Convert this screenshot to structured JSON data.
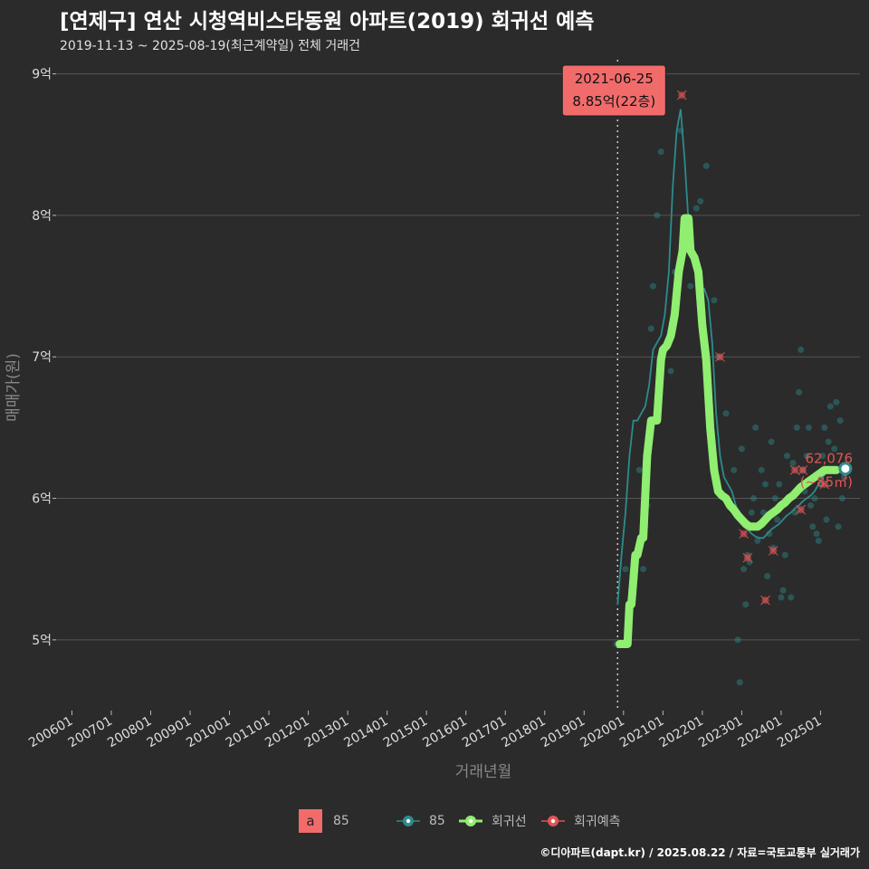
{
  "title": "[연제구] 연산 시청역비스타동원 아파트(2019) 회귀선 예측",
  "subtitle": "2019-11-13 ~ 2025-08-19(최근계약일) 전체 거래건",
  "footer": "©디아파트(dapt.kr) / 2025.08.22 / 자료=국토교통부 실거래가",
  "colors": {
    "background": "#2b2b2b",
    "grid": "#555555",
    "series85": "#2e8b8b",
    "regression": "#90ee70",
    "prediction": "#e05555",
    "callout_bg": "#f26b6b"
  },
  "chart_data": {
    "type": "line",
    "title": "[연제구] 연산 시청역비스타동원 아파트(2019) 회귀선 예측",
    "xlabel": "거래년월",
    "ylabel": "매매가(원)",
    "ylim": [
      4.5,
      9.1
    ],
    "y_unit": "억",
    "yticks": [
      5,
      6,
      7,
      8,
      9
    ],
    "ytick_labels": [
      "5억",
      "6억",
      "7억",
      "8억",
      "9억"
    ],
    "xlim": [
      2005.6,
      2026.0
    ],
    "xticks": [
      2006,
      2007,
      2008,
      2009,
      2010,
      2011,
      2012,
      2013,
      2014,
      2015,
      2016,
      2017,
      2018,
      2019,
      2020,
      2021,
      2022,
      2023,
      2024,
      2025
    ],
    "xtick_labels": [
      "200601",
      "200701",
      "200801",
      "200901",
      "201001",
      "201101",
      "201201",
      "201301",
      "201401",
      "201501",
      "201601",
      "201701",
      "201801",
      "201901",
      "202001",
      "202101",
      "202201",
      "202301",
      "202401",
      "202501"
    ],
    "vline_x": 2019.85,
    "annotation": {
      "x": 2021.48,
      "y": 8.85,
      "date": "2021-06-25",
      "value_label": "8.85억(22층)"
    },
    "end_label": {
      "x": 2025.63,
      "y": 6.21,
      "value": "62,076",
      "area": "(~85㎡)"
    },
    "legend": [
      {
        "key": "a",
        "label": "85",
        "type": "box"
      },
      {
        "label": "85",
        "type": "line-point"
      },
      {
        "label": "회귀선",
        "type": "line-point"
      },
      {
        "label": "회귀예측",
        "type": "line-point"
      }
    ],
    "series": [
      {
        "name": "85",
        "x": [
          2019.85,
          2019.95,
          2020.05,
          2020.15,
          2020.25,
          2020.35,
          2020.45,
          2020.55,
          2020.65,
          2020.75,
          2020.85,
          2020.95,
          2021.05,
          2021.15,
          2021.25,
          2021.35,
          2021.45,
          2021.55,
          2021.65,
          2021.75,
          2021.85,
          2021.95,
          2022.05,
          2022.15,
          2022.25,
          2022.35,
          2022.45,
          2022.55,
          2022.65,
          2022.75,
          2022.85,
          2022.95,
          2023.05,
          2023.15,
          2023.25,
          2023.35,
          2023.45,
          2023.55,
          2023.65,
          2023.75,
          2023.85,
          2023.95,
          2024.05,
          2024.15,
          2024.25,
          2024.35,
          2024.45,
          2024.55,
          2024.65,
          2024.75,
          2024.85,
          2024.95,
          2025.05,
          2025.15,
          2025.25,
          2025.35,
          2025.45,
          2025.55,
          2025.63
        ],
        "values": [
          5.25,
          5.6,
          5.9,
          6.3,
          6.55,
          6.55,
          6.6,
          6.65,
          6.8,
          7.05,
          7.1,
          7.15,
          7.3,
          7.6,
          8.2,
          8.6,
          8.75,
          8.4,
          7.95,
          7.75,
          7.6,
          7.48,
          7.48,
          7.4,
          7.1,
          6.6,
          6.3,
          6.15,
          6.1,
          6.05,
          5.95,
          5.85,
          5.8,
          5.78,
          5.75,
          5.73,
          5.72,
          5.72,
          5.75,
          5.78,
          5.8,
          5.82,
          5.85,
          5.88,
          5.9,
          5.93,
          5.95,
          5.98,
          6.0,
          6.02,
          6.05,
          6.1,
          6.15,
          6.18,
          6.2,
          6.21,
          6.21,
          6.21,
          6.21
        ]
      },
      {
        "name": "회귀선",
        "x": [
          2019.9,
          2020.1,
          2020.15,
          2020.2,
          2020.3,
          2020.35,
          2020.45,
          2020.5,
          2020.6,
          2020.7,
          2020.75,
          2020.85,
          2020.95,
          2021.0,
          2021.1,
          2021.2,
          2021.3,
          2021.4,
          2021.5,
          2021.55,
          2021.65,
          2021.7,
          2021.8,
          2021.9,
          2022.0,
          2022.1,
          2022.2,
          2022.3,
          2022.4,
          2022.5,
          2022.6,
          2022.7,
          2022.8,
          2022.9,
          2023.0,
          2023.1,
          2023.2,
          2023.3,
          2023.4,
          2023.5,
          2023.6,
          2023.7,
          2023.8,
          2023.9,
          2024.0,
          2024.1,
          2024.2,
          2024.3,
          2024.4,
          2024.5,
          2024.6,
          2024.7,
          2024.8,
          2024.9,
          2025.0,
          2025.1,
          2025.2,
          2025.3,
          2025.4
        ],
        "values": [
          4.97,
          4.97,
          5.25,
          5.25,
          5.6,
          5.6,
          5.72,
          5.72,
          6.3,
          6.55,
          6.55,
          6.55,
          6.98,
          7.05,
          7.08,
          7.15,
          7.3,
          7.6,
          7.75,
          7.98,
          7.98,
          7.75,
          7.7,
          7.6,
          7.22,
          6.98,
          6.5,
          6.2,
          6.05,
          6.02,
          6.0,
          5.95,
          5.92,
          5.88,
          5.85,
          5.82,
          5.8,
          5.8,
          5.8,
          5.82,
          5.85,
          5.88,
          5.9,
          5.92,
          5.95,
          5.97,
          6.0,
          6.02,
          6.05,
          6.08,
          6.1,
          6.12,
          6.14,
          6.16,
          6.18,
          6.2,
          6.2,
          6.2,
          6.2
        ]
      }
    ],
    "scatter_points": [
      {
        "x": 2019.82,
        "y": 4.97
      },
      {
        "x": 2020.05,
        "y": 5.5
      },
      {
        "x": 2020.4,
        "y": 6.2
      },
      {
        "x": 2020.5,
        "y": 5.5
      },
      {
        "x": 2020.55,
        "y": 5.8
      },
      {
        "x": 2020.6,
        "y": 5.95
      },
      {
        "x": 2020.7,
        "y": 7.2
      },
      {
        "x": 2020.75,
        "y": 7.5
      },
      {
        "x": 2020.85,
        "y": 8.0
      },
      {
        "x": 2020.95,
        "y": 8.45
      },
      {
        "x": 2021.1,
        "y": 7.1
      },
      {
        "x": 2021.2,
        "y": 6.9
      },
      {
        "x": 2021.3,
        "y": 7.6
      },
      {
        "x": 2021.45,
        "y": 8.6
      },
      {
        "x": 2021.6,
        "y": 7.8
      },
      {
        "x": 2021.7,
        "y": 7.5
      },
      {
        "x": 2021.85,
        "y": 8.05
      },
      {
        "x": 2021.95,
        "y": 8.1
      },
      {
        "x": 2022.1,
        "y": 8.35
      },
      {
        "x": 2022.3,
        "y": 7.4
      },
      {
        "x": 2022.4,
        "y": 7.0
      },
      {
        "x": 2022.6,
        "y": 6.6
      },
      {
        "x": 2022.8,
        "y": 6.2
      },
      {
        "x": 2022.9,
        "y": 5.0
      },
      {
        "x": 2022.95,
        "y": 4.7
      },
      {
        "x": 2023.0,
        "y": 6.35
      },
      {
        "x": 2023.05,
        "y": 5.5
      },
      {
        "x": 2023.1,
        "y": 5.25
      },
      {
        "x": 2023.15,
        "y": 5.6
      },
      {
        "x": 2023.2,
        "y": 5.55
      },
      {
        "x": 2023.25,
        "y": 5.9
      },
      {
        "x": 2023.3,
        "y": 6.0
      },
      {
        "x": 2023.35,
        "y": 6.5
      },
      {
        "x": 2023.4,
        "y": 5.7
      },
      {
        "x": 2023.45,
        "y": 5.8
      },
      {
        "x": 2023.5,
        "y": 6.2
      },
      {
        "x": 2023.55,
        "y": 5.9
      },
      {
        "x": 2023.6,
        "y": 6.1
      },
      {
        "x": 2023.65,
        "y": 5.45
      },
      {
        "x": 2023.7,
        "y": 5.75
      },
      {
        "x": 2023.75,
        "y": 6.4
      },
      {
        "x": 2023.8,
        "y": 5.65
      },
      {
        "x": 2023.85,
        "y": 6.0
      },
      {
        "x": 2023.9,
        "y": 5.85
      },
      {
        "x": 2023.95,
        "y": 6.1
      },
      {
        "x": 2024.0,
        "y": 5.3
      },
      {
        "x": 2024.05,
        "y": 5.35
      },
      {
        "x": 2024.1,
        "y": 5.6
      },
      {
        "x": 2024.15,
        "y": 6.3
      },
      {
        "x": 2024.2,
        "y": 6.0
      },
      {
        "x": 2024.25,
        "y": 5.3
      },
      {
        "x": 2024.3,
        "y": 6.25
      },
      {
        "x": 2024.35,
        "y": 5.9
      },
      {
        "x": 2024.4,
        "y": 6.5
      },
      {
        "x": 2024.45,
        "y": 6.75
      },
      {
        "x": 2024.5,
        "y": 7.05
      },
      {
        "x": 2024.55,
        "y": 6.2
      },
      {
        "x": 2024.6,
        "y": 6.05
      },
      {
        "x": 2024.65,
        "y": 6.3
      },
      {
        "x": 2024.7,
        "y": 6.5
      },
      {
        "x": 2024.75,
        "y": 5.95
      },
      {
        "x": 2024.8,
        "y": 5.8
      },
      {
        "x": 2024.85,
        "y": 6.0
      },
      {
        "x": 2024.9,
        "y": 5.75
      },
      {
        "x": 2024.95,
        "y": 5.7
      },
      {
        "x": 2025.0,
        "y": 6.1
      },
      {
        "x": 2025.05,
        "y": 6.3
      },
      {
        "x": 2025.1,
        "y": 6.5
      },
      {
        "x": 2025.15,
        "y": 5.85
      },
      {
        "x": 2025.2,
        "y": 6.4
      },
      {
        "x": 2025.25,
        "y": 6.65
      },
      {
        "x": 2025.3,
        "y": 6.2
      },
      {
        "x": 2025.35,
        "y": 6.35
      },
      {
        "x": 2025.4,
        "y": 6.68
      },
      {
        "x": 2025.45,
        "y": 5.8
      },
      {
        "x": 2025.5,
        "y": 6.55
      },
      {
        "x": 2025.55,
        "y": 6.0
      },
      {
        "x": 2025.6,
        "y": 6.15
      }
    ],
    "prediction_points": [
      {
        "x": 2021.48,
        "y": 8.85
      },
      {
        "x": 2022.45,
        "y": 7.0
      },
      {
        "x": 2023.05,
        "y": 5.75
      },
      {
        "x": 2023.15,
        "y": 5.58
      },
      {
        "x": 2023.6,
        "y": 5.28
      },
      {
        "x": 2023.8,
        "y": 5.63
      },
      {
        "x": 2024.35,
        "y": 6.2
      },
      {
        "x": 2024.55,
        "y": 6.2
      },
      {
        "x": 2024.5,
        "y": 5.92
      },
      {
        "x": 2025.1,
        "y": 6.1
      }
    ]
  }
}
